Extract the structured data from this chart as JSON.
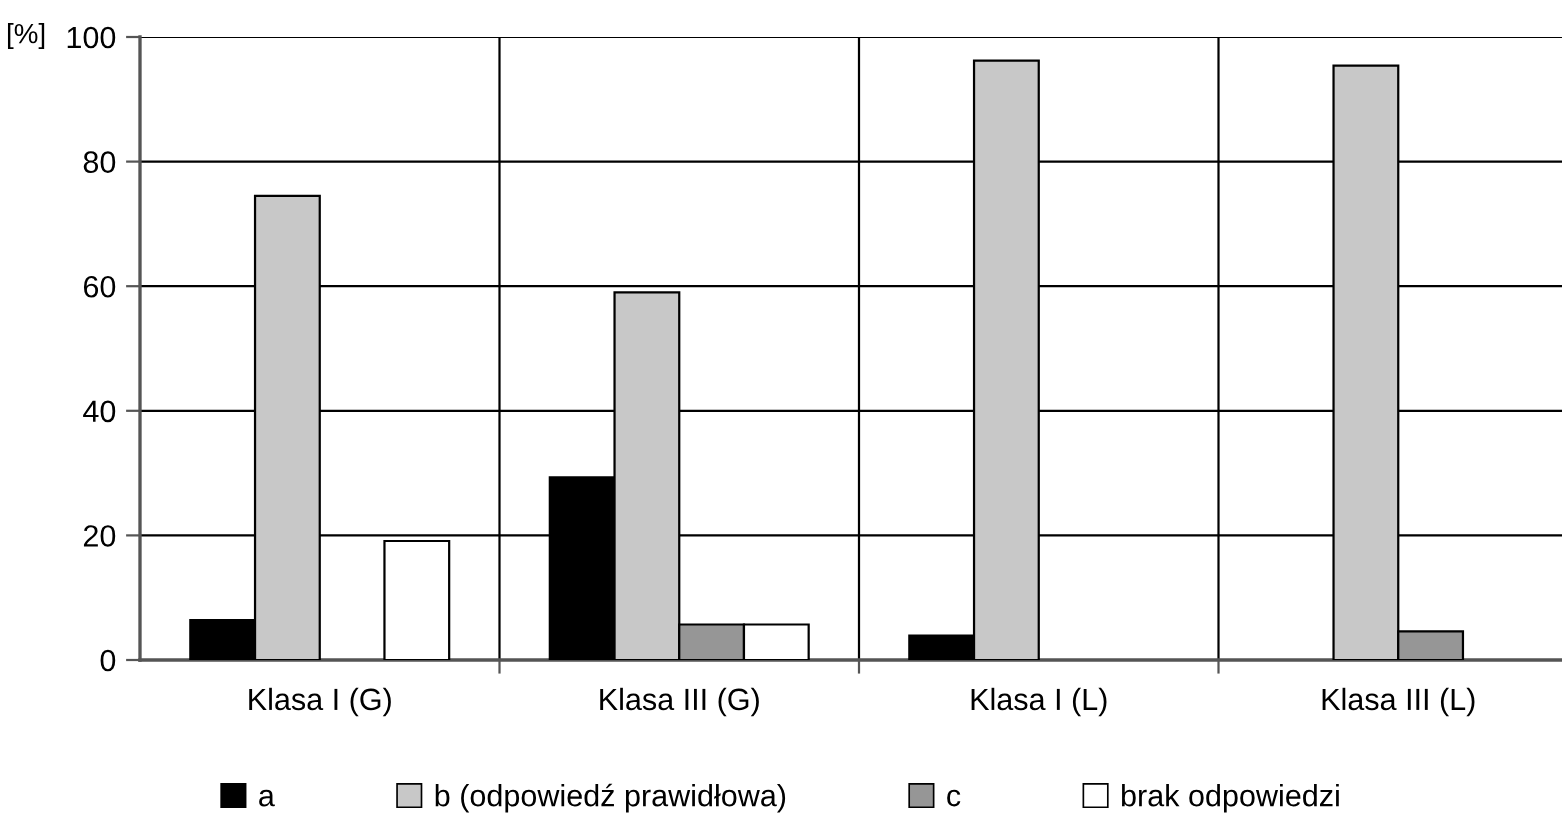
{
  "chart_data": {
    "type": "bar",
    "ylabel": "[%]",
    "categories": [
      "Klasa I (G)",
      "Klasa III (G)",
      "Klasa I (L)",
      "Klasa III (L)"
    ],
    "series": [
      {
        "name": "a",
        "color": "#000000",
        "values": [
          6.4,
          29.3,
          3.9,
          0
        ]
      },
      {
        "name": "b (odpowiedź prawidłowa)",
        "color": "#c8c8c8",
        "values": [
          74.5,
          59.0,
          96.2,
          95.4
        ]
      },
      {
        "name": "c",
        "color": "#969696",
        "values": [
          0,
          5.7,
          0,
          4.6
        ]
      },
      {
        "name": "brak odpowiedzi",
        "color": "#ffffff",
        "values": [
          19.1,
          5.7,
          0,
          0
        ]
      }
    ],
    "ylim": [
      0,
      100
    ],
    "yticks": [
      0,
      20,
      40,
      60,
      80,
      100
    ],
    "grid": true,
    "legend": "bottom"
  }
}
